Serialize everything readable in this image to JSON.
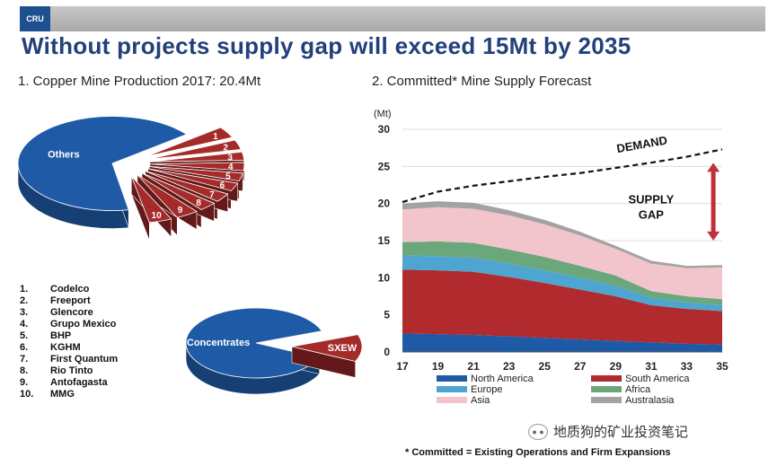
{
  "header": {
    "logo_text": "CRU",
    "title": "Without projects supply gap will exceed 15Mt by 2035"
  },
  "left": {
    "subtitle": "1. Copper Mine Production 2017: 20.4Mt",
    "pie_main": {
      "slices": [
        {
          "label": "Others",
          "color": "#1f5aa6"
        },
        {
          "label": "1"
        },
        {
          "label": "2"
        },
        {
          "label": "3"
        },
        {
          "label": "4"
        },
        {
          "label": "5"
        },
        {
          "label": "6"
        },
        {
          "label": "7"
        },
        {
          "label": "8"
        },
        {
          "label": "9"
        },
        {
          "label": "10"
        }
      ],
      "producer_color": "#a52a2a"
    },
    "pie_process": {
      "slices": [
        {
          "label": "Concentrates",
          "color": "#1f5aa6"
        },
        {
          "label": "SXEW",
          "color": "#a52a2a"
        }
      ]
    },
    "producers": [
      {
        "num": "1.",
        "name": "Codelco"
      },
      {
        "num": "2.",
        "name": "Freeport"
      },
      {
        "num": "3.",
        "name": "Glencore"
      },
      {
        "num": "4.",
        "name": "Grupo Mexico"
      },
      {
        "num": "5.",
        "name": "BHP"
      },
      {
        "num": "6.",
        "name": "KGHM"
      },
      {
        "num": "7.",
        "name": "First Quantum"
      },
      {
        "num": "8.",
        "name": "Rio Tinto"
      },
      {
        "num": "9.",
        "name": "Antofagasta"
      },
      {
        "num": "10.",
        "name": "MMG"
      }
    ]
  },
  "chart_data": {
    "type": "area",
    "title": "2. Committed* Mine Supply Forecast",
    "ylabel": "(Mt)",
    "ylim": [
      0,
      30
    ],
    "yticks": [
      0,
      5,
      10,
      15,
      20,
      25,
      30
    ],
    "xticks": [
      "17",
      "19",
      "21",
      "23",
      "25",
      "27",
      "29",
      "31",
      "33",
      "35"
    ],
    "x": [
      17,
      19,
      21,
      23,
      25,
      27,
      29,
      31,
      33,
      35
    ],
    "grid": "horizontal",
    "legend_position": "bottom",
    "series": [
      {
        "name": "North America",
        "color": "#1f5aa6",
        "values": [
          2.5,
          2.4,
          2.3,
          2.1,
          1.9,
          1.7,
          1.5,
          1.3,
          1.1,
          1.0
        ]
      },
      {
        "name": "South America",
        "color": "#b02a2e",
        "values": [
          8.6,
          8.6,
          8.5,
          8.0,
          7.4,
          6.7,
          6.0,
          5.0,
          4.7,
          4.5
        ]
      },
      {
        "name": "Europe",
        "color": "#4ea5d0",
        "values": [
          1.9,
          1.9,
          1.9,
          1.8,
          1.7,
          1.6,
          1.4,
          1.0,
          0.9,
          0.8
        ]
      },
      {
        "name": "Africa",
        "color": "#6aa77a",
        "values": [
          1.8,
          2.0,
          2.0,
          1.9,
          1.8,
          1.6,
          1.4,
          0.9,
          0.8,
          0.8
        ]
      },
      {
        "name": "Asia",
        "color": "#f2c4cc",
        "values": [
          4.4,
          4.6,
          4.6,
          4.6,
          4.4,
          4.1,
          3.6,
          3.7,
          3.8,
          4.3
        ]
      },
      {
        "name": "Australasia",
        "color": "#a3a3a3",
        "values": [
          0.8,
          0.8,
          0.8,
          0.7,
          0.6,
          0.5,
          0.4,
          0.4,
          0.3,
          0.3
        ]
      }
    ],
    "demand": {
      "label": "DEMAND",
      "values": [
        20.2,
        21.6,
        22.4,
        23.0,
        23.6,
        24.1,
        24.8,
        25.5,
        26.3,
        27.3
      ]
    },
    "gap_label_line1": "SUPPLY",
    "gap_label_line2": "GAP"
  },
  "footer": {
    "footnote": "* Committed = Existing Operations and Firm Expansions",
    "watermark": "地质狗的矿业投资笔记"
  }
}
